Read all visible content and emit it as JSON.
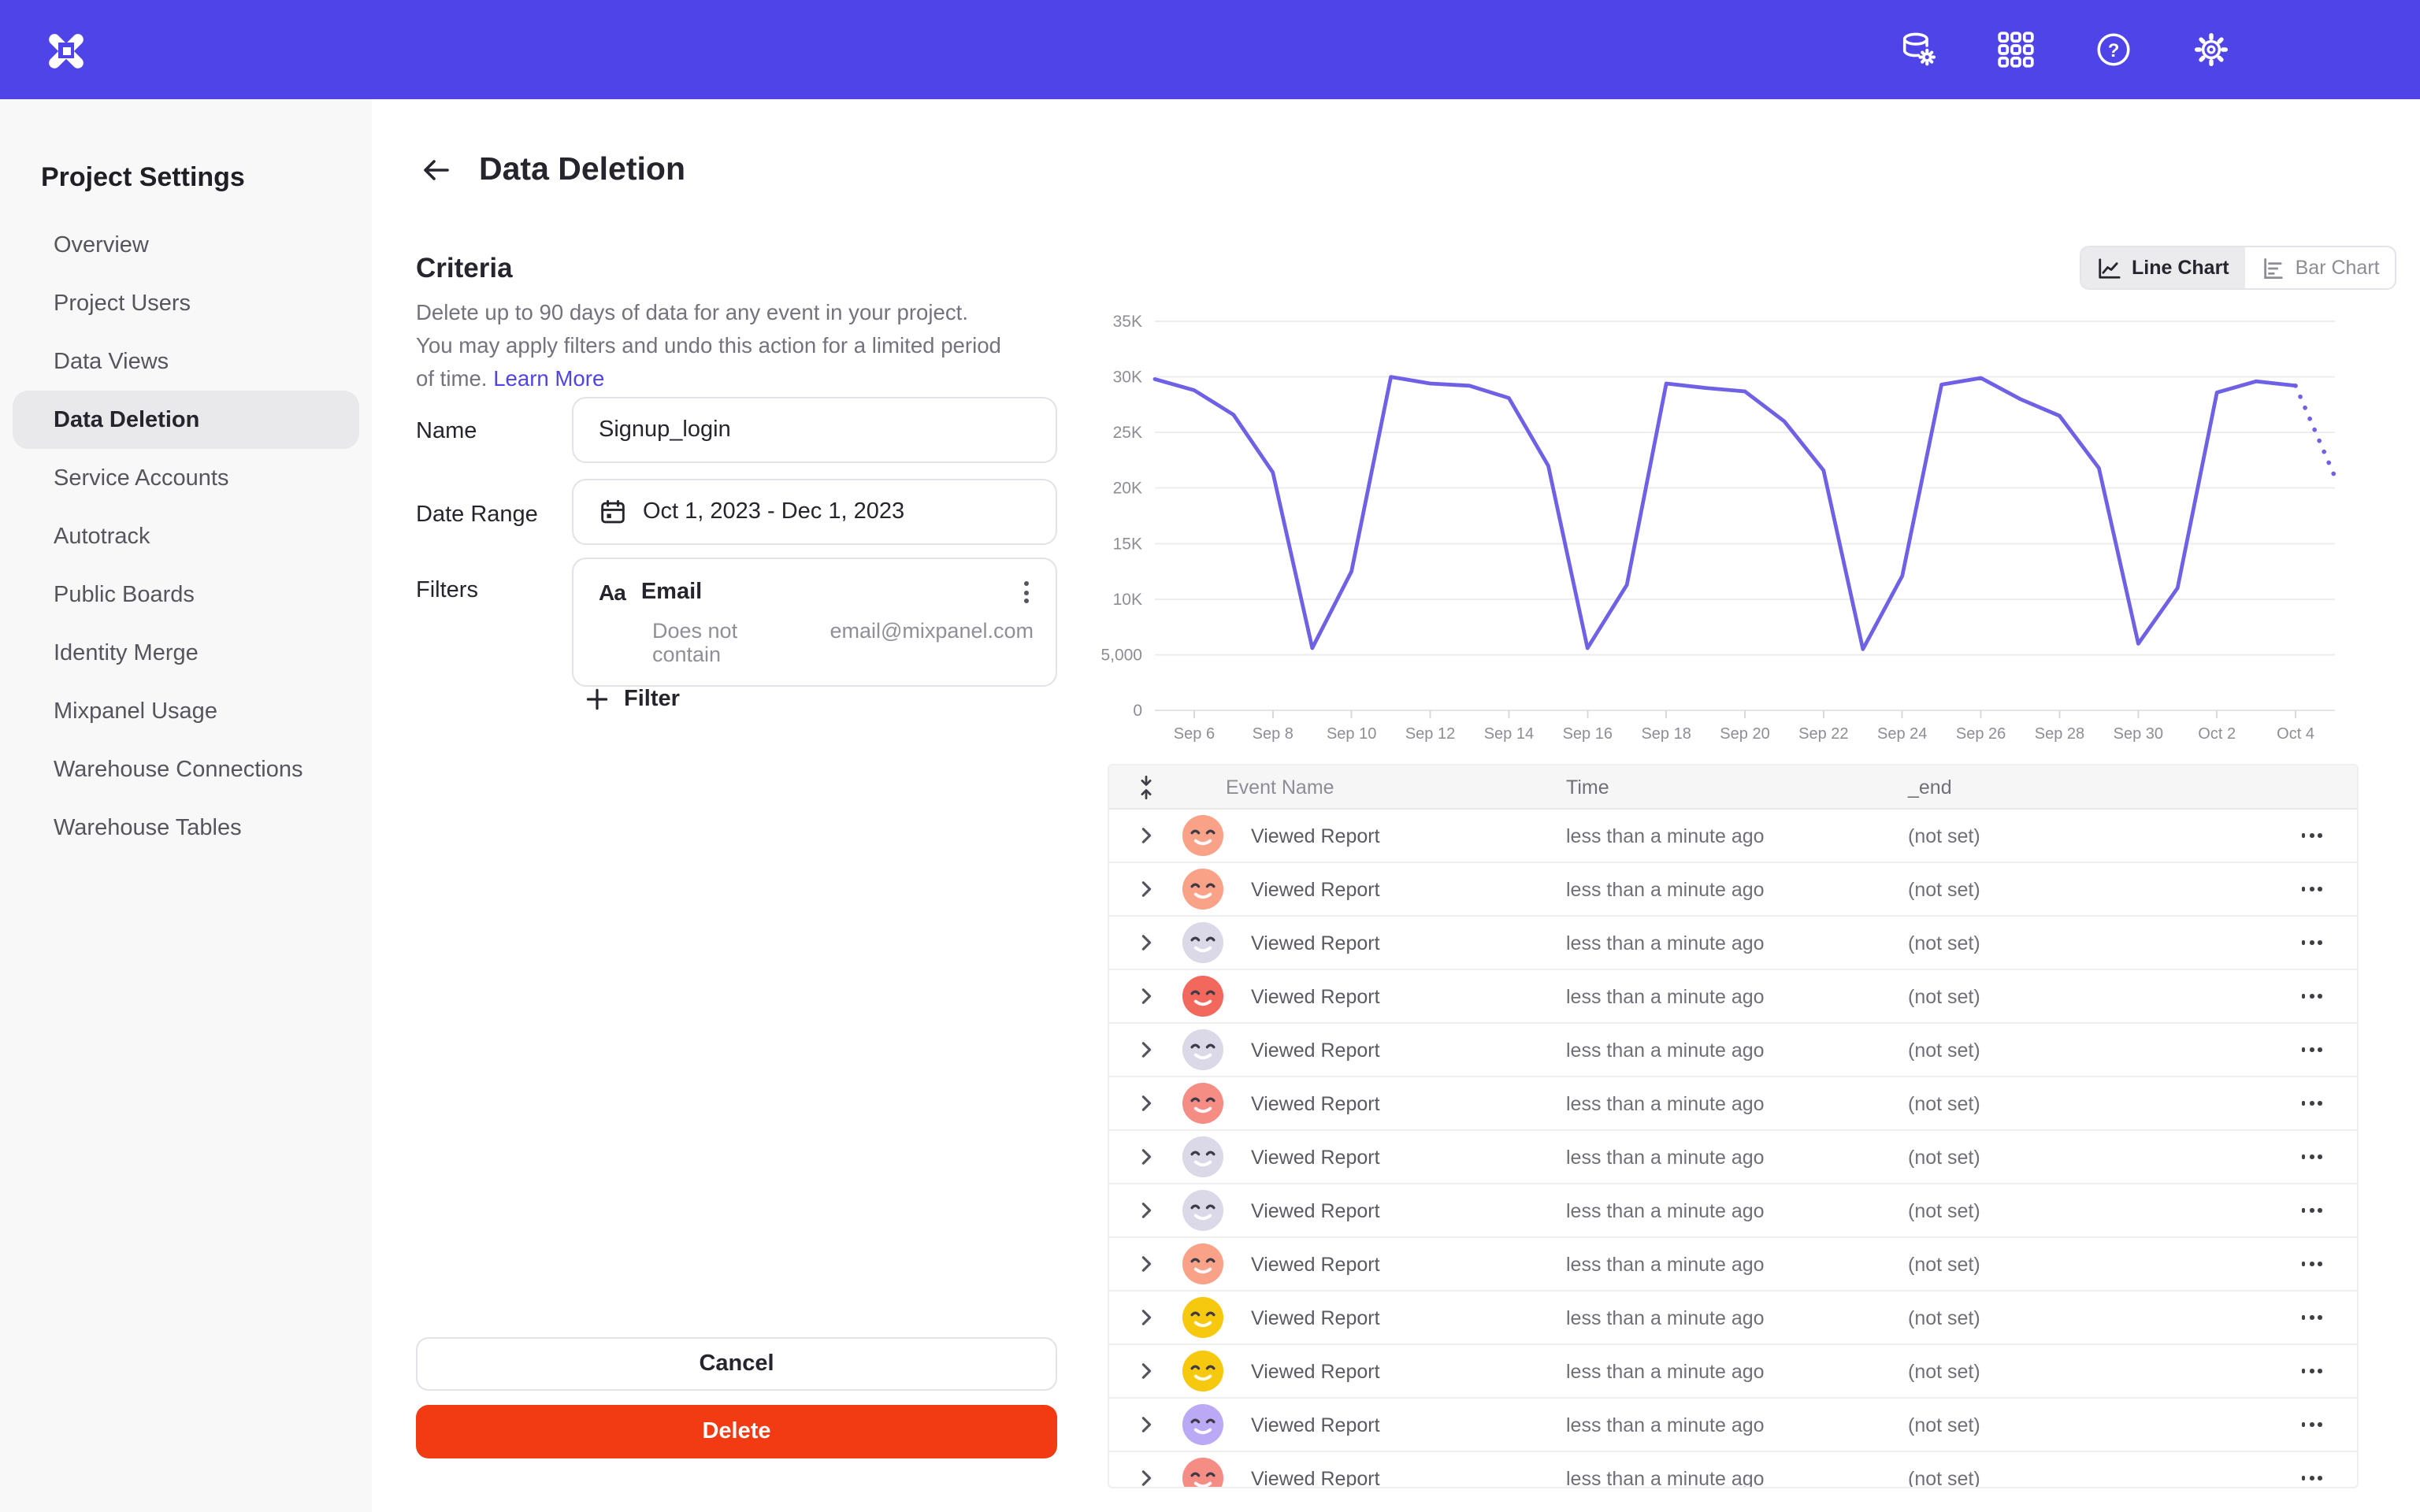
{
  "topbar": {
    "icons": [
      "data-settings",
      "apps-grid",
      "help",
      "settings"
    ]
  },
  "sidebar": {
    "title": "Project Settings",
    "items": [
      {
        "label": "Overview",
        "active": false
      },
      {
        "label": "Project Users",
        "active": false
      },
      {
        "label": "Data Views",
        "active": false
      },
      {
        "label": "Data Deletion",
        "active": true
      },
      {
        "label": "Service Accounts",
        "active": false
      },
      {
        "label": "Autotrack",
        "active": false
      },
      {
        "label": "Public Boards",
        "active": false
      },
      {
        "label": "Identity Merge",
        "active": false
      },
      {
        "label": "Mixpanel Usage",
        "active": false
      },
      {
        "label": "Warehouse Connections",
        "active": false
      },
      {
        "label": "Warehouse Tables",
        "active": false
      }
    ]
  },
  "header": {
    "title": "Data Deletion"
  },
  "criteria": {
    "heading": "Criteria",
    "description": "Delete up to 90 days of data for any event in your project. You may apply filters and undo this action for a limited period of time.",
    "learn_more": "Learn More"
  },
  "form": {
    "name_label": "Name",
    "name_value": "Signup_login",
    "date_range_label": "Date Range",
    "date_range_value": "Oct 1, 2023 - Dec 1, 2023",
    "filters_label": "Filters",
    "filter_property_icon": "Aa",
    "filter_property": "Email",
    "filter_operator": "Does not contain",
    "filter_value": "email@mixpanel.com",
    "add_filter_label": "Filter"
  },
  "buttons": {
    "cancel": "Cancel",
    "delete": "Delete"
  },
  "chart_toggle": {
    "line_label": "Line Chart",
    "bar_label": "Bar Chart",
    "active": "line"
  },
  "chart_data": {
    "type": "line",
    "title": "",
    "xlabel": "",
    "ylabel": "",
    "line_color": "#6E61E6",
    "grid": true,
    "legend": "none",
    "ylim": [
      0,
      35000
    ],
    "ytick_values": [
      0,
      5000,
      10000,
      15000,
      20000,
      25000,
      30000,
      35000
    ],
    "ytick_labels": [
      "0",
      "5,000",
      "10K",
      "15K",
      "20K",
      "25K",
      "30K",
      "35K"
    ],
    "x": [
      "Sep 5",
      "Sep 6",
      "Sep 7",
      "Sep 8",
      "Sep 9",
      "Sep 10",
      "Sep 11",
      "Sep 12",
      "Sep 13",
      "Sep 14",
      "Sep 15",
      "Sep 16",
      "Sep 17",
      "Sep 18",
      "Sep 19",
      "Sep 20",
      "Sep 21",
      "Sep 22",
      "Sep 23",
      "Sep 24",
      "Sep 25",
      "Sep 26",
      "Sep 27",
      "Sep 28",
      "Sep 29",
      "Sep 30",
      "Oct 1",
      "Oct 2",
      "Oct 3",
      "Oct 4",
      "Oct 5"
    ],
    "series": [
      {
        "name": "events",
        "values": [
          29800,
          28800,
          26600,
          21400,
          5600,
          12500,
          30000,
          29400,
          29200,
          28100,
          22000,
          5600,
          11300,
          29400,
          29000,
          28700,
          26000,
          21600,
          5500,
          12100,
          29300,
          29900,
          28000,
          26500,
          21800,
          6000,
          11000,
          28600,
          29600,
          29200,
          21000
        ]
      }
    ],
    "dashed_tail_points": 1,
    "xtick_labels": [
      "Sep 6",
      "Sep 8",
      "Sep 10",
      "Sep 12",
      "Sep 14",
      "Sep 16",
      "Sep 18",
      "Sep 20",
      "Sep 22",
      "Sep 24",
      "Sep 26",
      "Sep 28",
      "Sep 30",
      "Oct 2",
      "Oct 4"
    ],
    "xtick_first_index": 1,
    "xtick_step": 2
  },
  "table": {
    "columns": [
      "Event Name",
      "Time",
      "_end"
    ],
    "rows": [
      {
        "event": "Viewed Report",
        "time": "less than a minute ago",
        "end": "(not set)",
        "avatar_color": "#F9A287"
      },
      {
        "event": "Viewed Report",
        "time": "less than a minute ago",
        "end": "(not set)",
        "avatar_color": "#F9A287"
      },
      {
        "event": "Viewed Report",
        "time": "less than a minute ago",
        "end": "(not set)",
        "avatar_color": "#DBD9E8"
      },
      {
        "event": "Viewed Report",
        "time": "less than a minute ago",
        "end": "(not set)",
        "avatar_color": "#F2685C"
      },
      {
        "event": "Viewed Report",
        "time": "less than a minute ago",
        "end": "(not set)",
        "avatar_color": "#DBD9E8"
      },
      {
        "event": "Viewed Report",
        "time": "less than a minute ago",
        "end": "(not set)",
        "avatar_color": "#F58D85"
      },
      {
        "event": "Viewed Report",
        "time": "less than a minute ago",
        "end": "(not set)",
        "avatar_color": "#DBD9E8"
      },
      {
        "event": "Viewed Report",
        "time": "less than a minute ago",
        "end": "(not set)",
        "avatar_color": "#DBD9E8"
      },
      {
        "event": "Viewed Report",
        "time": "less than a minute ago",
        "end": "(not set)",
        "avatar_color": "#F9A287"
      },
      {
        "event": "Viewed Report",
        "time": "less than a minute ago",
        "end": "(not set)",
        "avatar_color": "#F6C90E"
      },
      {
        "event": "Viewed Report",
        "time": "less than a minute ago",
        "end": "(not set)",
        "avatar_color": "#F6C90E"
      },
      {
        "event": "Viewed Report",
        "time": "less than a minute ago",
        "end": "(not set)",
        "avatar_color": "#BCA9F5"
      },
      {
        "event": "Viewed Report",
        "time": "less than a minute ago",
        "end": "(not set)",
        "avatar_color": "#F58D85"
      }
    ]
  }
}
